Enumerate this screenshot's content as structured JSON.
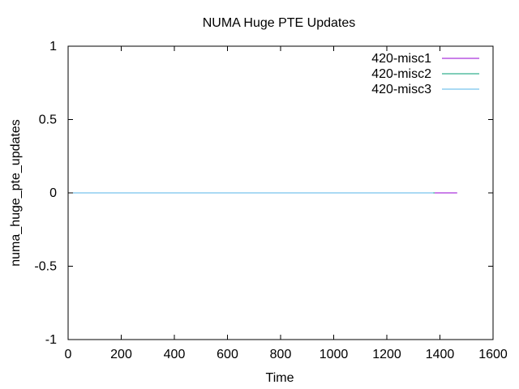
{
  "chart_data": {
    "type": "line",
    "title": "NUMA Huge PTE Updates",
    "xlabel": "Time",
    "ylabel": "numa_huge_pte_updates",
    "xlim": [
      0,
      1600
    ],
    "ylim": [
      -1,
      1
    ],
    "xticks": [
      0,
      200,
      400,
      600,
      800,
      1000,
      1200,
      1400,
      1600
    ],
    "yticks": [
      -1,
      -0.5,
      0,
      0.5,
      1
    ],
    "xtick_labels": [
      "0",
      "200",
      "400",
      "600",
      "800",
      "1000",
      "1200",
      "1400",
      "1600"
    ],
    "ytick_labels": [
      "-1",
      "-0.5",
      "0",
      "0.5",
      "1"
    ],
    "grid": false,
    "legend_position": "top-right",
    "series": [
      {
        "name": "420-misc1",
        "color": "#9400d3",
        "x": [
          1375,
          1465
        ],
        "y": [
          0,
          0
        ]
      },
      {
        "name": "420-misc2",
        "color": "#009e73",
        "x": [
          0,
          1380
        ],
        "y": [
          0,
          0
        ]
      },
      {
        "name": "420-misc3",
        "color": "#56b4e9",
        "x": [
          0,
          1375
        ],
        "y": [
          0,
          0
        ]
      }
    ]
  }
}
